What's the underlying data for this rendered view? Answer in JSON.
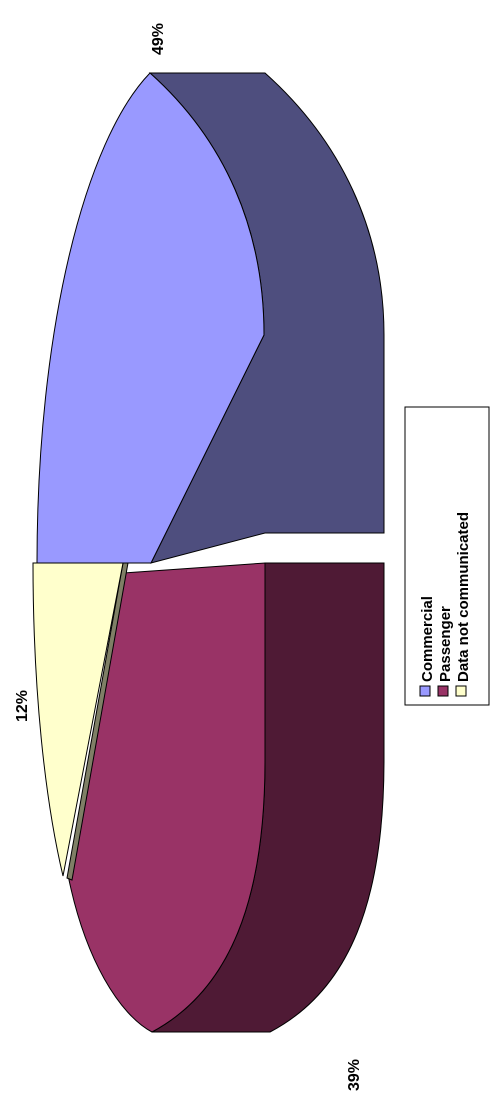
{
  "chart_data": {
    "type": "pie",
    "style": "3d-exploded",
    "orientation": "rotated-90-ccw",
    "series": [
      {
        "name": "Commercial",
        "value": 49,
        "label": "49%",
        "color": "#9999FF",
        "side_color": "#4E4E7E"
      },
      {
        "name": "Passenger",
        "value": 39,
        "label": "39%",
        "color": "#993366",
        "side_color": "#4F1A35"
      },
      {
        "name": "Data not communicated",
        "value": 12,
        "label": "12%",
        "color": "#FFFFCC",
        "side_color": "#7F7F66"
      }
    ],
    "legend": {
      "placement": "right",
      "entries": [
        "Commercial",
        "Passenger",
        "Data not communicated"
      ]
    }
  }
}
